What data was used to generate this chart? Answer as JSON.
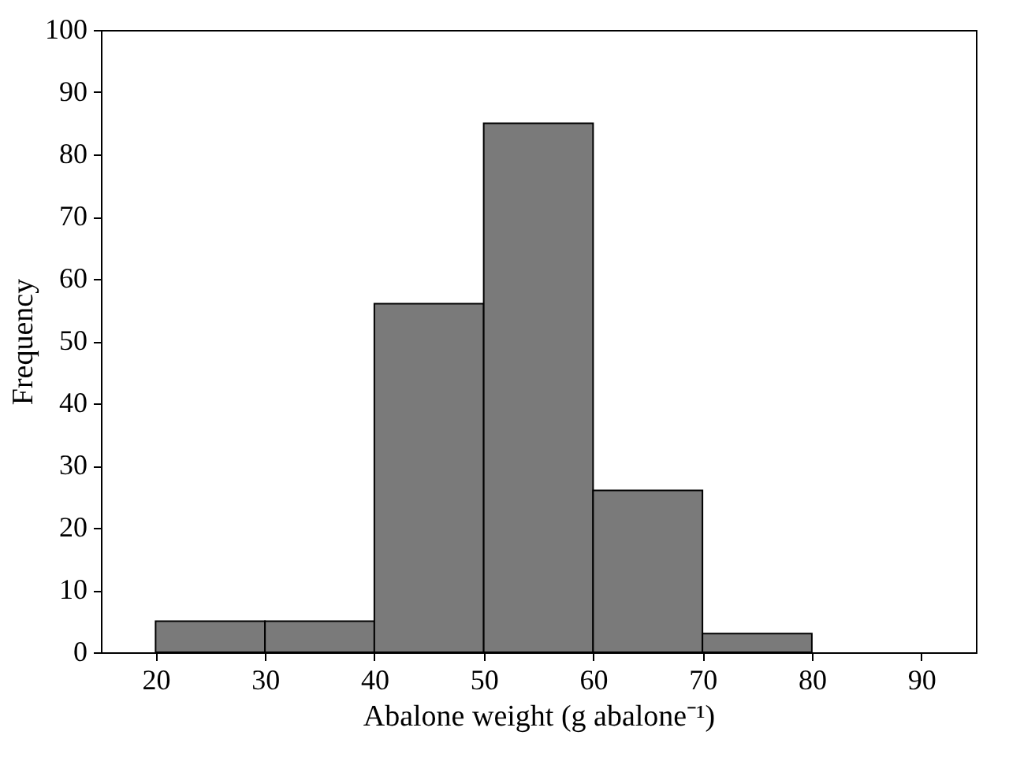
{
  "chart_data": {
    "type": "histogram",
    "xlabel": "Abalone weight (g abalone⁻¹)",
    "ylabel": "Frequency",
    "bins": [
      20,
      30,
      40,
      50,
      60,
      70,
      80
    ],
    "values": [
      5,
      5,
      56,
      85,
      26,
      3
    ],
    "color": "#7a7a7a",
    "xlim": [
      15,
      95
    ],
    "xticks": [
      20,
      30,
      40,
      50,
      60,
      70,
      80,
      90
    ],
    "ylim": [
      0,
      100
    ],
    "yticks": [
      0,
      10,
      20,
      30,
      40,
      50,
      60,
      70,
      80,
      90,
      100
    ],
    "grid": false
  }
}
